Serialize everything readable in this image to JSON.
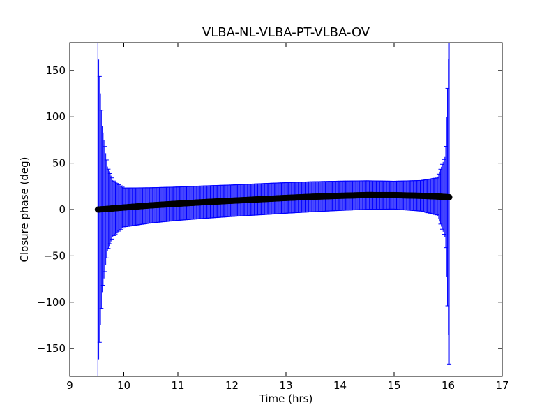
{
  "chart_data": {
    "type": "scatter",
    "title": "VLBA-NL-VLBA-PT-VLBA-OV",
    "xlabel": "Time (hrs)",
    "ylabel": "Closure phase (deg)",
    "xlim": [
      9,
      17
    ],
    "ylim": [
      -180,
      180
    ],
    "xticks": [
      9,
      10,
      11,
      12,
      13,
      14,
      15,
      16,
      17
    ],
    "yticks": [
      -150,
      -100,
      -50,
      0,
      50,
      100,
      150
    ],
    "ytick_labels": [
      "−150",
      "−100",
      "−50",
      "0",
      "50",
      "100",
      "150"
    ],
    "grid": false,
    "legend": "none",
    "series": [
      {
        "marker_color": "#000000",
        "errorbar_color": "#0000ff",
        "x": [
          9.52,
          9.6,
          9.7,
          9.8,
          10.0,
          10.5,
          11.0,
          11.5,
          12.0,
          12.5,
          13.0,
          13.5,
          14.0,
          14.5,
          15.0,
          15.5,
          15.8,
          15.95,
          16.02
        ],
        "y": [
          0,
          0.3,
          0.7,
          1.2,
          2.2,
          4.5,
          6.3,
          8.0,
          9.5,
          11.0,
          12.5,
          13.8,
          14.8,
          15.6,
          15.5,
          14.8,
          14.1,
          13.5,
          13.3
        ],
        "yerr": [
          180,
          90,
          45,
          30,
          21,
          19,
          18,
          17.5,
          17,
          16.8,
          16.5,
          16.2,
          15.8,
          15.4,
          15.0,
          16.5,
          20,
          45,
          180
        ]
      }
    ]
  }
}
